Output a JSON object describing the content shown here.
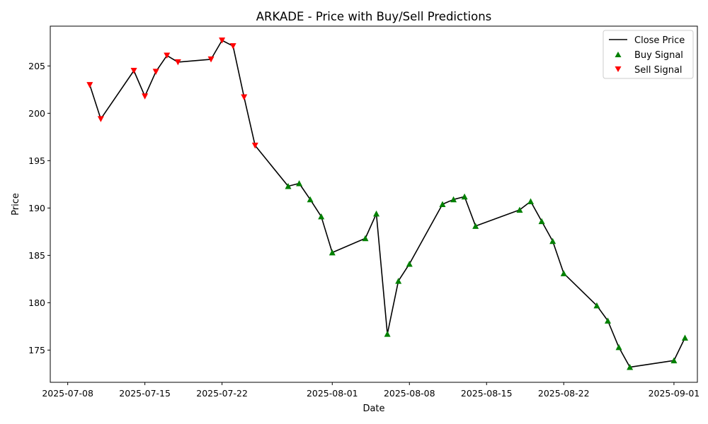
{
  "chart_data": {
    "type": "line",
    "title": "ARKADE - Price with Buy/Sell Predictions",
    "xlabel": "Date",
    "ylabel": "Price",
    "ylim": [
      171.6,
      209.2
    ],
    "xlim": [
      "2025-07-06 10:00",
      "2025-09-03 03:00"
    ],
    "grid": false,
    "legend_position": "top-right",
    "x_ticks": [
      "2025-07-08",
      "2025-07-15",
      "2025-07-22",
      "2025-08-01",
      "2025-08-08",
      "2025-08-15",
      "2025-08-22",
      "2025-09-01"
    ],
    "y_ticks": [
      175,
      180,
      185,
      190,
      195,
      200,
      205
    ],
    "colors": {
      "close_price": "#000000",
      "buy_signal": "#008000",
      "sell_signal": "#ff0000"
    },
    "series": [
      {
        "name": "Close Price",
        "kind": "line",
        "x": [
          "2025-07-10",
          "2025-07-11",
          "2025-07-14",
          "2025-07-15",
          "2025-07-16",
          "2025-07-17",
          "2025-07-18",
          "2025-07-21",
          "2025-07-22",
          "2025-07-23",
          "2025-07-24",
          "2025-07-25",
          "2025-07-28",
          "2025-07-29",
          "2025-07-30",
          "2025-07-31",
          "2025-08-01",
          "2025-08-04",
          "2025-08-05",
          "2025-08-06",
          "2025-08-07",
          "2025-08-08",
          "2025-08-11",
          "2025-08-12",
          "2025-08-13",
          "2025-08-14",
          "2025-08-18",
          "2025-08-19",
          "2025-08-20",
          "2025-08-21",
          "2025-08-22",
          "2025-08-25",
          "2025-08-26",
          "2025-08-27",
          "2025-08-28",
          "2025-09-01",
          "2025-09-02"
        ],
        "y": [
          203.0,
          199.4,
          204.5,
          201.8,
          204.4,
          206.1,
          205.4,
          205.7,
          207.7,
          207.1,
          201.7,
          196.6,
          192.3,
          192.6,
          190.9,
          189.1,
          185.3,
          186.8,
          189.4,
          176.7,
          182.3,
          184.1,
          190.4,
          190.9,
          191.2,
          188.1,
          189.8,
          190.7,
          188.6,
          186.5,
          183.1,
          179.7,
          178.1,
          175.3,
          173.2,
          173.9,
          176.3
        ]
      },
      {
        "name": "Buy Signal",
        "kind": "scatter",
        "marker": "triangle-up",
        "x": [
          "2025-07-28",
          "2025-07-29",
          "2025-07-30",
          "2025-07-31",
          "2025-08-01",
          "2025-08-04",
          "2025-08-05",
          "2025-08-06",
          "2025-08-07",
          "2025-08-08",
          "2025-08-11",
          "2025-08-12",
          "2025-08-13",
          "2025-08-14",
          "2025-08-18",
          "2025-08-19",
          "2025-08-20",
          "2025-08-21",
          "2025-08-22",
          "2025-08-25",
          "2025-08-26",
          "2025-08-27",
          "2025-08-28",
          "2025-09-01",
          "2025-09-02"
        ],
        "y": [
          192.3,
          192.6,
          190.9,
          189.1,
          185.3,
          186.8,
          189.4,
          176.7,
          182.3,
          184.1,
          190.4,
          190.9,
          191.2,
          188.1,
          189.8,
          190.7,
          188.6,
          186.5,
          183.1,
          179.7,
          178.1,
          175.3,
          173.2,
          173.9,
          176.3
        ]
      },
      {
        "name": "Sell Signal",
        "kind": "scatter",
        "marker": "triangle-down",
        "x": [
          "2025-07-10",
          "2025-07-11",
          "2025-07-14",
          "2025-07-15",
          "2025-07-16",
          "2025-07-17",
          "2025-07-18",
          "2025-07-21",
          "2025-07-22",
          "2025-07-23",
          "2025-07-24",
          "2025-07-25"
        ],
        "y": [
          203.0,
          199.4,
          204.5,
          201.8,
          204.4,
          206.1,
          205.4,
          205.7,
          207.7,
          207.1,
          201.7,
          196.6
        ]
      }
    ]
  }
}
